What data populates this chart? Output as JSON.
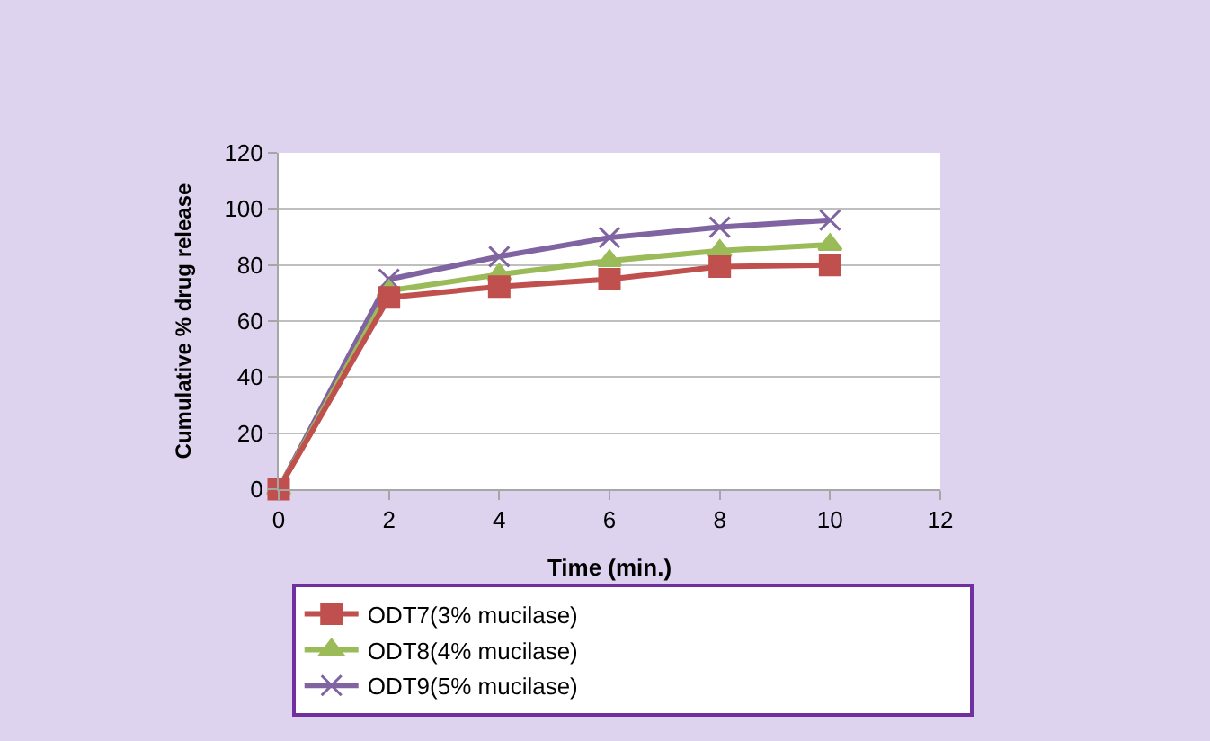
{
  "chart_data": {
    "type": "line",
    "xlabel": "Time (min.)",
    "ylabel": "Cumulative % drug release",
    "x": [
      0,
      2,
      4,
      6,
      8,
      10
    ],
    "series": [
      {
        "name": "ODT7(3% mucilase)",
        "color": "#c0504d",
        "marker": "square",
        "values": [
          0,
          68.4,
          72.3,
          74.9,
          79.4,
          80
        ]
      },
      {
        "name": "ODT8(4% mucilase)",
        "color": "#9bbb59",
        "marker": "triangle",
        "values": [
          0,
          70.8,
          76.6,
          81.5,
          85.1,
          87.3
        ]
      },
      {
        "name": "ODT9(5% mucilase)",
        "color": "#8064a2",
        "marker": "cross",
        "values": [
          0,
          74.9,
          83,
          89.8,
          93.5,
          96
        ]
      }
    ],
    "xlim": [
      0,
      12
    ],
    "xticks": [
      0,
      2,
      4,
      6,
      8,
      10,
      12
    ],
    "ylim": [
      0,
      120
    ],
    "yticks": [
      0,
      20,
      40,
      60,
      80,
      100,
      120
    ],
    "grid": "y",
    "legend": "bottom",
    "line_style": "solid"
  }
}
